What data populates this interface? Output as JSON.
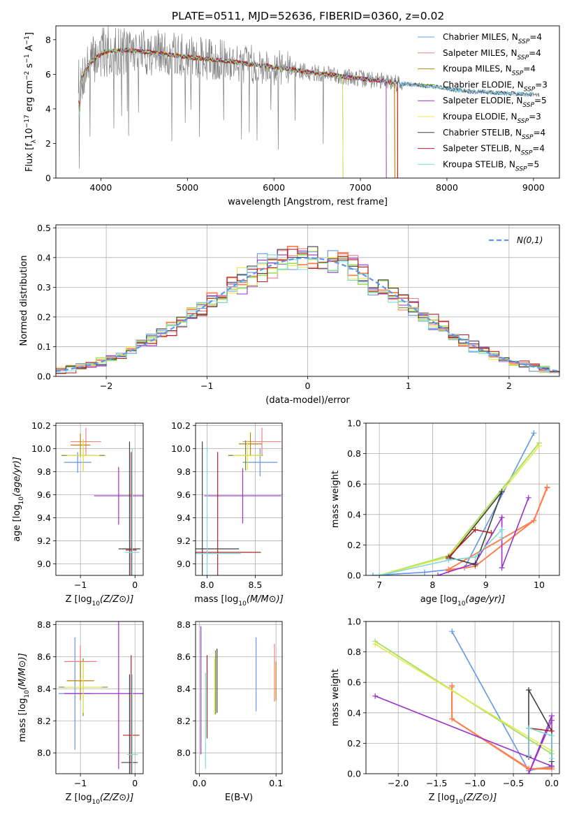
{
  "figure": {
    "title": "PLATE=0511, MJD=52636, FIBERID=0360, z=0.02"
  },
  "models": [
    {
      "name": "Chabrier MILES, N",
      "sub": "SSP",
      "suffix": "=4",
      "color": "#6495ed"
    },
    {
      "name": "Salpeter MILES, N",
      "sub": "SSP",
      "suffix": "=4",
      "color": "#f08080"
    },
    {
      "name": "Kroupa MILES, N",
      "sub": "SSP",
      "suffix": "=4",
      "color": "#b8860b"
    },
    {
      "name": "Chabrier ELODIE, N",
      "sub": "SSP",
      "suffix": "=3",
      "color": "#6b8e23"
    },
    {
      "name": "Salpeter ELODIE, N",
      "sub": "SSP",
      "suffix": "=5",
      "color": "#9932cc"
    },
    {
      "name": "Kroupa ELODIE, N",
      "sub": "SSP",
      "suffix": "=3",
      "color": "#e8e84a"
    },
    {
      "name": "Chabrier STELIB, N",
      "sub": "SSP",
      "suffix": "=4",
      "color": "#404040"
    },
    {
      "name": "Salpeter STELIB, N",
      "sub": "SSP",
      "suffix": "=4",
      "color": "#b22222"
    },
    {
      "name": "Kroupa STELIB, N",
      "sub": "SSP",
      "suffix": "=5",
      "color": "#7fd8d8"
    }
  ],
  "chart_data": [
    {
      "id": "spectrum",
      "type": "line",
      "title": "PLATE=0511, MJD=52636, FIBERID=0360, z=0.02",
      "xlabel": "wavelength [Angstrom, rest frame]",
      "ylabel": "Flux [f_λ 10^-17 erg cm^-2 s^-1 A^-1]",
      "xlim": [
        3480,
        9300
      ],
      "ylim": [
        0,
        8.8
      ],
      "xticks": [
        4000,
        5000,
        6000,
        7000,
        8000,
        9000
      ],
      "yticks": [
        0,
        2,
        4,
        6,
        8
      ],
      "data_color": "#808080",
      "data_range": [
        3740,
        9070
      ],
      "continuum": {
        "x": [
          3740,
          3780,
          3850,
          3950,
          4050,
          4150,
          4300,
          4500,
          4700,
          4900,
          5100,
          5300,
          5500,
          5700,
          5900,
          6100,
          6300,
          6500,
          6700,
          6900,
          7100,
          7300,
          7500,
          7700,
          7900,
          8100,
          8300,
          8500,
          8700,
          8900,
          9070
        ],
        "y": [
          4.6,
          5.8,
          6.5,
          7.0,
          7.3,
          7.35,
          7.4,
          7.3,
          7.2,
          7.05,
          6.95,
          6.85,
          6.75,
          6.6,
          6.5,
          6.35,
          6.2,
          6.05,
          5.95,
          5.8,
          5.7,
          5.6,
          5.45,
          5.35,
          5.25,
          5.1,
          5.0,
          4.95,
          4.9,
          4.85,
          4.8
        ]
      },
      "model_cutoff": [
        9000,
        7300,
        7400,
        6800,
        7300,
        6800,
        9000,
        7430,
        9000
      ],
      "dips": [
        3850,
        3900,
        4150,
        5890,
        6800,
        7430
      ]
    },
    {
      "id": "residuals",
      "type": "histogram",
      "xlabel": "(data-model)/error",
      "ylabel": "Normed distribution",
      "xlim": [
        -2.5,
        2.5
      ],
      "ylim": [
        0,
        0.51
      ],
      "xticks": [
        -2,
        -1,
        0,
        1,
        2
      ],
      "yticks": [
        0.0,
        0.1,
        0.2,
        0.3,
        0.4,
        0.5
      ],
      "bin_width": 0.1,
      "reference_label": "N(0,1)",
      "reference_color": "#6495ed",
      "series_offsets": [
        0.03,
        -0.02,
        0.01,
        0.02,
        -0.01,
        0.04,
        0.0,
        -0.03,
        0.015
      ]
    },
    {
      "id": "age_vs_Z",
      "type": "errorbar",
      "xlabel": "Z [log10(Z/Z⊙)]",
      "ylabel": "age [log10(age/yr)]",
      "xlim": [
        -1.45,
        0.15
      ],
      "ylim": [
        8.9,
        10.22
      ],
      "xticks": [
        -1,
        0
      ],
      "yticks": [
        9.0,
        9.2,
        9.4,
        9.6,
        9.8,
        10.0,
        10.2
      ],
      "points": [
        {
          "x": -1.05,
          "y": 9.88,
          "xerr": 0.25,
          "yerr": 0.09,
          "model": 0
        },
        {
          "x": -0.9,
          "y": 10.06,
          "xerr": 0.28,
          "yerr": 0.12,
          "model": 1
        },
        {
          "x": -1.0,
          "y": 10.03,
          "xerr": 0.18,
          "yerr": 0.1,
          "model": 2
        },
        {
          "x": -0.95,
          "y": 9.94,
          "xerr": 0.4,
          "yerr": 0.14,
          "model": 3
        },
        {
          "x": -0.3,
          "y": 9.59,
          "xerr": 0.45,
          "yerr": 0.25,
          "model": 4
        },
        {
          "x": -0.95,
          "y": 9.94,
          "xerr": 0.3,
          "yerr": 0.14,
          "model": 5
        },
        {
          "x": -0.1,
          "y": 9.13,
          "xerr": 0.2,
          "yerr": 0.93,
          "model": 6
        },
        {
          "x": -0.07,
          "y": 9.12,
          "xerr": 0.1,
          "yerr": 0.85,
          "model": 7
        },
        {
          "x": -0.05,
          "y": 9.1,
          "xerr": 0.13,
          "yerr": 0.9,
          "model": 8
        }
      ]
    },
    {
      "id": "age_vs_mass",
      "type": "errorbar",
      "xlabel": "mass [log10(M/M⊙)]",
      "ylabel": "",
      "xlim": [
        7.88,
        8.78
      ],
      "ylim": [
        8.9,
        10.22
      ],
      "xticks": [
        8.0,
        8.5
      ],
      "yticks": [
        9.0,
        9.2,
        9.4,
        9.6,
        9.8,
        10.0,
        10.2
      ],
      "points": [
        {
          "x": 8.55,
          "y": 9.88,
          "xerr": 0.18,
          "yerr": 0.12,
          "model": 0
        },
        {
          "x": 8.57,
          "y": 10.06,
          "xerr": 0.2,
          "yerr": 0.12,
          "model": 1
        },
        {
          "x": 8.45,
          "y": 10.04,
          "xerr": 0.12,
          "yerr": 0.1,
          "model": 2
        },
        {
          "x": 8.4,
          "y": 9.94,
          "xerr": 0.18,
          "yerr": 0.13,
          "model": 3
        },
        {
          "x": 8.37,
          "y": 9.59,
          "xerr": 0.4,
          "yerr": 0.24,
          "model": 4
        },
        {
          "x": 8.42,
          "y": 9.94,
          "xerr": 0.15,
          "yerr": 0.13,
          "model": 5
        },
        {
          "x": 7.95,
          "y": 9.13,
          "xerr": 0.38,
          "yerr": 0.93,
          "model": 6
        },
        {
          "x": 8.11,
          "y": 9.1,
          "xerr": 0.45,
          "yerr": 0.87,
          "model": 7
        },
        {
          "x": 8.0,
          "y": 9.09,
          "xerr": 0.35,
          "yerr": 0.92,
          "model": 8
        }
      ]
    },
    {
      "id": "mass_weight_vs_age",
      "type": "line",
      "xlabel": "age [log10(age/yr)]",
      "ylabel": "mass weight",
      "xlim": [
        6.75,
        10.38
      ],
      "ylim": [
        0,
        1.0
      ],
      "xticks": [
        7,
        8,
        9,
        10
      ],
      "yticks": [
        0.0,
        0.2,
        0.4,
        0.6,
        0.8,
        1.0
      ],
      "series": [
        {
          "model": 0,
          "x": [
            6.88,
            7.85,
            8.6,
            9.9
          ],
          "y": [
            0.0,
            0.02,
            0.05,
            0.935
          ]
        },
        {
          "model": 1,
          "x": [
            8.3,
            8.3,
            9.9,
            10.15
          ],
          "y": [
            0.03,
            0.04,
            0.36,
            0.58
          ]
        },
        {
          "model": 2,
          "x": [
            8.3,
            8.8,
            9.9,
            10.15
          ],
          "y": [
            0.035,
            0.06,
            0.36,
            0.575
          ]
        },
        {
          "model": 3,
          "x": [
            7.0,
            8.3,
            10.0
          ],
          "y": [
            0.0,
            0.13,
            0.87
          ]
        },
        {
          "model": 4,
          "x": [
            8.1,
            8.8,
            9.3,
            9.3,
            9.8
          ],
          "y": [
            0.0,
            0.08,
            0.38,
            0.05,
            0.51
          ]
        },
        {
          "model": 5,
          "x": [
            7.0,
            8.3,
            10.0
          ],
          "y": [
            0.0,
            0.12,
            0.85
          ]
        },
        {
          "model": 6,
          "x": [
            8.3,
            8.8,
            9.3,
            8.3
          ],
          "y": [
            0.12,
            0.07,
            0.55,
            0.11
          ]
        },
        {
          "model": 7,
          "x": [
            8.3,
            8.8,
            9.1
          ],
          "y": [
            0.12,
            0.3,
            0.28
          ]
        },
        {
          "model": 8,
          "x": [
            7.0,
            8.3,
            8.8,
            9.3,
            9.3
          ],
          "y": [
            0.0,
            0.1,
            0.12,
            0.3,
            0.25
          ]
        }
      ]
    },
    {
      "id": "mass_vs_Z",
      "type": "errorbar",
      "xlabel": "Z [log10(Z/Z⊙)]",
      "ylabel": "mass [log10(M/M⊙)]",
      "xlim": [
        -1.45,
        0.15
      ],
      "ylim": [
        7.87,
        8.82
      ],
      "xticks": [
        -1,
        0
      ],
      "yticks": [
        8.0,
        8.2,
        8.4,
        8.6,
        8.8
      ],
      "points": [
        {
          "x": -1.1,
          "y": 8.37,
          "xerr": 0.3,
          "yerr": 0.35,
          "model": 0
        },
        {
          "x": -1.0,
          "y": 8.57,
          "xerr": 0.3,
          "yerr": 0.1,
          "model": 1
        },
        {
          "x": -1.0,
          "y": 8.45,
          "xerr": 0.25,
          "yerr": 0.12,
          "model": 2
        },
        {
          "x": -0.95,
          "y": 8.41,
          "xerr": 0.45,
          "yerr": 0.18,
          "model": 3
        },
        {
          "x": -0.3,
          "y": 8.37,
          "xerr": 1.0,
          "yerr": 0.47,
          "model": 4
        },
        {
          "x": -0.95,
          "y": 8.41,
          "xerr": 0.35,
          "yerr": 0.16,
          "model": 5
        },
        {
          "x": -0.1,
          "y": 7.94,
          "xerr": 0.15,
          "yerr": 0.55,
          "model": 6
        },
        {
          "x": -0.07,
          "y": 8.11,
          "xerr": 0.15,
          "yerr": 0.5,
          "model": 7
        },
        {
          "x": -0.05,
          "y": 7.99,
          "xerr": 0.1,
          "yerr": 0.5,
          "model": 8
        }
      ]
    },
    {
      "id": "mass_vs_EBV",
      "type": "errorbar",
      "xlabel": "E(B-V)",
      "ylabel": "",
      "xlim": [
        -0.005,
        0.108
      ],
      "ylim": [
        7.87,
        8.82
      ],
      "xticks": [
        0.0,
        0.1
      ],
      "yticks": [
        8.0,
        8.2,
        8.4,
        8.6,
        8.8
      ],
      "points": [
        {
          "x": 0.074,
          "y": 8.49,
          "xerr": 0,
          "yerr": 0.23,
          "model": 0
        },
        {
          "x": 0.098,
          "y": 8.5,
          "xerr": 0,
          "yerr": 0.18,
          "model": 1
        },
        {
          "x": 0.1,
          "y": 8.45,
          "xerr": 0,
          "yerr": 0.12,
          "model": 2
        },
        {
          "x": 0.021,
          "y": 8.44,
          "xerr": 0,
          "yerr": 0.2,
          "model": 3
        },
        {
          "x": 0.002,
          "y": 8.39,
          "xerr": 0,
          "yerr": 0.4,
          "model": 4
        },
        {
          "x": 0.02,
          "y": 8.42,
          "xerr": 0,
          "yerr": 0.18,
          "model": 5
        },
        {
          "x": 0.023,
          "y": 8.45,
          "xerr": 0,
          "yerr": 0.2,
          "model": 6
        },
        {
          "x": 0.01,
          "y": 8.35,
          "xerr": 0,
          "yerr": 0.26,
          "model": 7
        },
        {
          "x": 0.008,
          "y": 8.2,
          "xerr": 0,
          "yerr": 0.3,
          "model": 8
        }
      ]
    },
    {
      "id": "mass_weight_vs_Z",
      "type": "line",
      "xlabel": "Z [log10(Z/Z⊙)]",
      "ylabel": "mass weight",
      "xlim": [
        -2.42,
        0.1
      ],
      "ylim": [
        0,
        1.0
      ],
      "xticks": [
        -2.0,
        -1.5,
        -1.0,
        -0.5,
        0.0
      ],
      "yticks": [
        0.0,
        0.2,
        0.4,
        0.6,
        0.8,
        1.0
      ],
      "series": [
        {
          "model": 0,
          "x": [
            -1.3,
            -0.3,
            0.0
          ],
          "y": [
            0.935,
            0.02,
            0.05
          ]
        },
        {
          "model": 1,
          "x": [
            -1.3,
            -1.3,
            -0.3,
            0.0
          ],
          "y": [
            0.58,
            0.36,
            0.03,
            0.04
          ]
        },
        {
          "model": 2,
          "x": [
            -1.3,
            -1.3,
            -0.3,
            0.0
          ],
          "y": [
            0.57,
            0.36,
            0.035,
            0.03
          ]
        },
        {
          "model": 3,
          "x": [
            -2.3,
            0.0
          ],
          "y": [
            0.87,
            0.13
          ]
        },
        {
          "model": 4,
          "x": [
            -2.3,
            0.0,
            0.0,
            -0.3,
            0.0
          ],
          "y": [
            0.51,
            0.05,
            0.38,
            0.0,
            0.35
          ]
        },
        {
          "model": 5,
          "x": [
            -2.3,
            0.0
          ],
          "y": [
            0.85,
            0.15
          ]
        },
        {
          "model": 6,
          "x": [
            -0.3,
            -0.3,
            0.0,
            0.0
          ],
          "y": [
            0.11,
            0.55,
            0.28,
            0.08
          ]
        },
        {
          "model": 7,
          "x": [
            -0.3,
            -0.3,
            0.0
          ],
          "y": [
            0.12,
            0.3,
            0.28
          ]
        },
        {
          "model": 8,
          "x": [
            -0.3,
            -0.3,
            0.0,
            0.0
          ],
          "y": [
            0.12,
            0.3,
            0.25,
            0.1
          ]
        }
      ]
    }
  ]
}
